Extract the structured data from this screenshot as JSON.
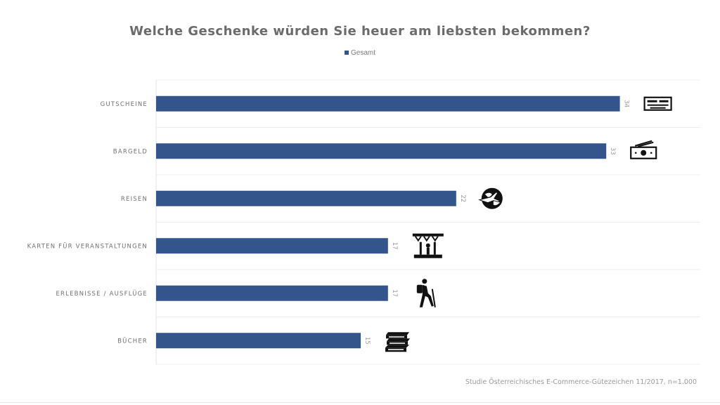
{
  "chart_data": {
    "type": "bar",
    "orientation": "horizontal",
    "title": "Welche Geschenke würden Sie heuer am liebsten bekommen?",
    "categories": [
      "GUTSCHEINE",
      "BARGELD",
      "REISEN",
      "KARTEN FÜR VERANSTALTUNGEN",
      "ERLEBNISSE / AUSFLÜGE",
      "BÜCHER"
    ],
    "series": [
      {
        "name": "Gesamt",
        "values": [
          34,
          33,
          22,
          17,
          17,
          15
        ]
      }
    ],
    "value_labels": [
      "34",
      "33",
      "22",
      "17",
      "17",
      "15"
    ],
    "icons": [
      "voucher-icon",
      "cash-icon",
      "globe-plane-icon",
      "stage-icon",
      "hiker-icon",
      "books-icon"
    ],
    "xlim": [
      0,
      40
    ],
    "legend_position": "top-center",
    "grid": "horizontal separators",
    "bar_color": "#34558b"
  },
  "legend": {
    "label": "Gesamt"
  },
  "source": "Studie Österreichisches E-Commerce-Gütezeichen 11/2017, n=1.000"
}
